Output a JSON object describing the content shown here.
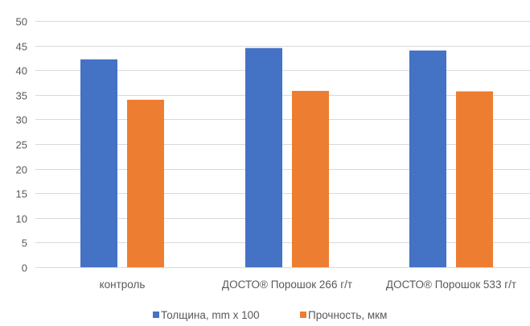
{
  "chart_data": {
    "type": "bar",
    "categories": [
      "контроль",
      "ДОСТО® Порошок 266 г/т",
      "ДОСТО® Порошок 533 г/т"
    ],
    "series": [
      {
        "name": "Толщина, mm x 100",
        "values": [
          42.2,
          44.5,
          44.0
        ],
        "color": "#4472C4"
      },
      {
        "name": "Прочность, мкм",
        "values": [
          34.0,
          35.8,
          35.7
        ],
        "color": "#ED7D31"
      }
    ],
    "yticks": [
      "0",
      "5",
      "10",
      "15",
      "20",
      "25",
      "30",
      "35",
      "40",
      "45",
      "50"
    ],
    "ylim": [
      0,
      50
    ],
    "grid": true,
    "legend_position": "bottom",
    "title": "",
    "xlabel": "",
    "ylabel": ""
  }
}
